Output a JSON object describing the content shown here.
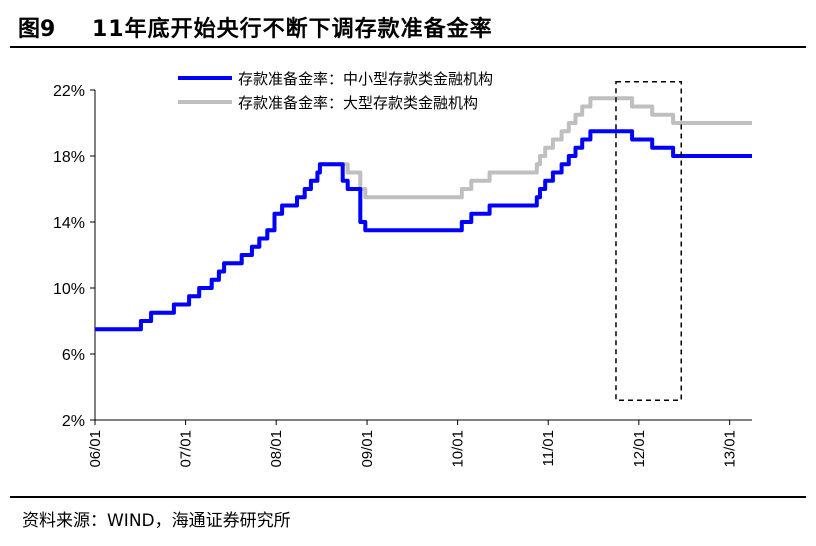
{
  "figure": {
    "number": "图9",
    "title": "11年底开始央行不断下调存款准备金率"
  },
  "source": "资料来源：WIND，海通证券研究所",
  "chart_data": {
    "type": "line",
    "title": "11年底开始央行不断下调存款准备金率",
    "xlabel": "",
    "ylabel": "",
    "x_range": [
      "2006-01-01",
      "2013-04-01"
    ],
    "x_ticks": [
      "06/01",
      "07/01",
      "08/01",
      "09/01",
      "10/01",
      "11/01",
      "12/01",
      "13/01"
    ],
    "y_ticks": [
      "2%",
      "6%",
      "10%",
      "14%",
      "18%",
      "22%"
    ],
    "ylim": [
      2,
      22
    ],
    "grid": false,
    "legend_position": "top-center",
    "highlight_box": {
      "x_from": "2011-10-01",
      "x_to": "2012-06-20",
      "y_from": 3.2,
      "y_to": 22.5
    },
    "series": [
      {
        "name": "存款准备金率：中小型存款类金融机构",
        "color": "#0000ff",
        "points": [
          [
            "2006-01-01",
            7.5
          ],
          [
            "2006-07-05",
            8.0
          ],
          [
            "2006-08-15",
            8.5
          ],
          [
            "2006-11-15",
            9.0
          ],
          [
            "2007-01-15",
            9.5
          ],
          [
            "2007-02-25",
            10.0
          ],
          [
            "2007-04-16",
            10.5
          ],
          [
            "2007-05-15",
            11.0
          ],
          [
            "2007-06-05",
            11.5
          ],
          [
            "2007-08-15",
            12.0
          ],
          [
            "2007-09-25",
            12.5
          ],
          [
            "2007-10-25",
            13.0
          ],
          [
            "2007-11-26",
            13.5
          ],
          [
            "2007-12-25",
            14.5
          ],
          [
            "2008-01-25",
            15.0
          ],
          [
            "2008-03-25",
            15.5
          ],
          [
            "2008-04-25",
            16.0
          ],
          [
            "2008-05-20",
            16.5
          ],
          [
            "2008-06-15",
            17.0
          ],
          [
            "2008-06-25",
            17.5
          ],
          [
            "2008-09-25",
            16.5
          ],
          [
            "2008-10-15",
            16.0
          ],
          [
            "2008-12-05",
            14.0
          ],
          [
            "2008-12-25",
            13.5
          ],
          [
            "2010-01-18",
            14.0
          ],
          [
            "2010-02-25",
            14.5
          ],
          [
            "2010-05-10",
            15.0
          ],
          [
            "2010-11-16",
            15.5
          ],
          [
            "2010-11-29",
            16.0
          ],
          [
            "2010-12-20",
            16.5
          ],
          [
            "2011-01-20",
            17.0
          ],
          [
            "2011-02-24",
            17.5
          ],
          [
            "2011-03-25",
            18.0
          ],
          [
            "2011-04-21",
            18.5
          ],
          [
            "2011-05-18",
            19.0
          ],
          [
            "2011-06-20",
            19.5
          ],
          [
            "2011-12-05",
            19.0
          ],
          [
            "2012-02-24",
            18.5
          ],
          [
            "2012-05-18",
            18.0
          ],
          [
            "2013-04-01",
            18.0
          ]
        ]
      },
      {
        "name": "存款准备金率：大型存款类金融机构",
        "color": "#bfbfbf",
        "points": [
          [
            "2006-01-01",
            7.5
          ],
          [
            "2006-07-05",
            8.0
          ],
          [
            "2006-08-15",
            8.5
          ],
          [
            "2006-11-15",
            9.0
          ],
          [
            "2007-01-15",
            9.5
          ],
          [
            "2007-02-25",
            10.0
          ],
          [
            "2007-04-16",
            10.5
          ],
          [
            "2007-05-15",
            11.0
          ],
          [
            "2007-06-05",
            11.5
          ],
          [
            "2007-08-15",
            12.0
          ],
          [
            "2007-09-25",
            12.5
          ],
          [
            "2007-10-25",
            13.0
          ],
          [
            "2007-11-26",
            13.5
          ],
          [
            "2007-12-25",
            14.5
          ],
          [
            "2008-01-25",
            15.0
          ],
          [
            "2008-03-25",
            15.5
          ],
          [
            "2008-04-25",
            16.0
          ],
          [
            "2008-05-20",
            16.5
          ],
          [
            "2008-06-15",
            17.0
          ],
          [
            "2008-06-25",
            17.5
          ],
          [
            "2008-10-15",
            17.0
          ],
          [
            "2008-12-05",
            16.0
          ],
          [
            "2008-12-25",
            15.5
          ],
          [
            "2010-01-18",
            16.0
          ],
          [
            "2010-02-25",
            16.5
          ],
          [
            "2010-05-10",
            17.0
          ],
          [
            "2010-11-16",
            17.5
          ],
          [
            "2010-11-29",
            18.0
          ],
          [
            "2010-12-20",
            18.5
          ],
          [
            "2011-01-20",
            19.0
          ],
          [
            "2011-02-24",
            19.5
          ],
          [
            "2011-03-25",
            20.0
          ],
          [
            "2011-04-21",
            20.5
          ],
          [
            "2011-05-18",
            21.0
          ],
          [
            "2011-06-20",
            21.5
          ],
          [
            "2011-12-05",
            21.0
          ],
          [
            "2012-02-24",
            20.5
          ],
          [
            "2012-05-18",
            20.0
          ],
          [
            "2013-04-01",
            20.0
          ]
        ]
      }
    ]
  }
}
